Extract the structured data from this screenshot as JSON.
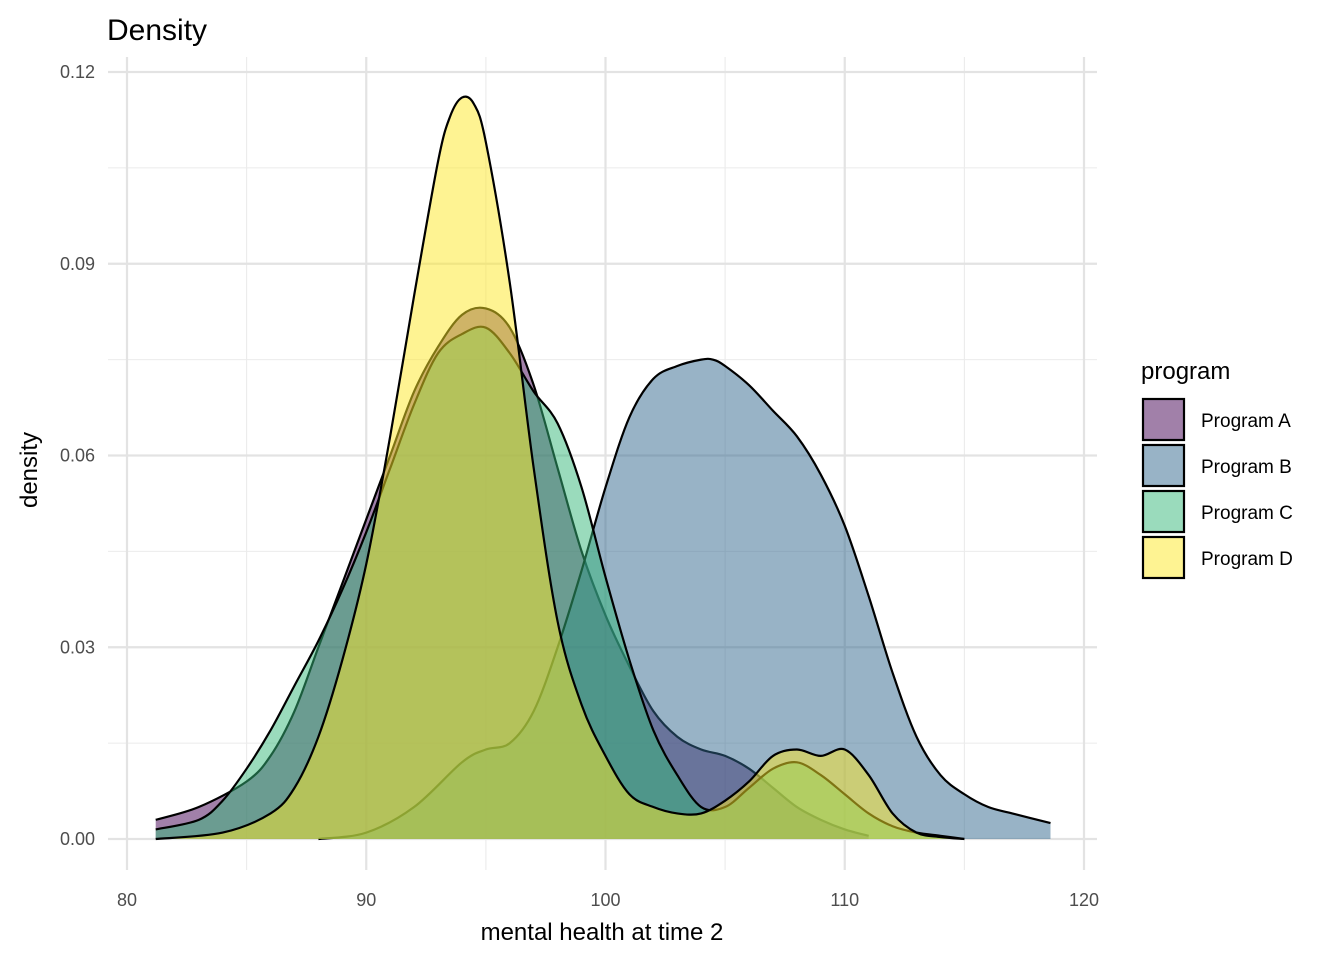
{
  "chart_data": {
    "type": "area",
    "title": "Density",
    "xlabel": "mental health at time 2",
    "ylabel": "density",
    "xlim": [
      80,
      120
    ],
    "ylim": [
      0,
      0.12
    ],
    "x_ticks": [
      "80",
      "90",
      "100",
      "110",
      "120"
    ],
    "y_ticks": [
      "0.00",
      "0.03",
      "0.06",
      "0.09",
      "0.12"
    ],
    "grid": true,
    "legend": {
      "title": "program",
      "position": "right"
    },
    "series": [
      {
        "name": "Program A",
        "color": "#440154",
        "x": [
          81.2,
          83,
          85,
          86,
          87,
          88,
          89,
          90,
          91,
          92,
          93,
          94,
          95,
          96,
          97,
          98,
          99,
          100,
          101,
          102,
          103,
          104,
          105,
          106,
          107,
          108,
          109,
          110,
          111
        ],
        "y": [
          0.003,
          0.005,
          0.009,
          0.013,
          0.02,
          0.03,
          0.04,
          0.05,
          0.06,
          0.07,
          0.077,
          0.082,
          0.083,
          0.08,
          0.071,
          0.058,
          0.045,
          0.035,
          0.027,
          0.02,
          0.016,
          0.014,
          0.013,
          0.011,
          0.008,
          0.005,
          0.003,
          0.0015,
          0.0005
        ]
      },
      {
        "name": "Program B",
        "color": "#31688E",
        "x": [
          88,
          90,
          92,
          94,
          95,
          96,
          97,
          98,
          99,
          100,
          101,
          102,
          103,
          104,
          104.5,
          105,
          106,
          107,
          108,
          109,
          110,
          111,
          112,
          113,
          114,
          115,
          116,
          117,
          118.6
        ],
        "y": [
          0.0,
          0.001,
          0.005,
          0.012,
          0.014,
          0.015,
          0.02,
          0.03,
          0.042,
          0.055,
          0.066,
          0.072,
          0.074,
          0.075,
          0.075,
          0.074,
          0.071,
          0.067,
          0.063,
          0.057,
          0.049,
          0.038,
          0.026,
          0.016,
          0.01,
          0.007,
          0.005,
          0.004,
          0.0025
        ]
      },
      {
        "name": "Program C",
        "color": "#35B779",
        "x": [
          81.2,
          83,
          84,
          85,
          86,
          87,
          88,
          89,
          90,
          91,
          92,
          93,
          94,
          95,
          96,
          97,
          98,
          99,
          100,
          101,
          102,
          103,
          104,
          105,
          106,
          107,
          108,
          109,
          110,
          111,
          112,
          113,
          114,
          115
        ],
        "y": [
          0.0015,
          0.003,
          0.006,
          0.011,
          0.017,
          0.024,
          0.031,
          0.039,
          0.048,
          0.058,
          0.068,
          0.076,
          0.079,
          0.08,
          0.076,
          0.07,
          0.065,
          0.055,
          0.041,
          0.028,
          0.017,
          0.01,
          0.005,
          0.005,
          0.008,
          0.011,
          0.012,
          0.01,
          0.007,
          0.004,
          0.002,
          0.001,
          0.0005,
          0.0
        ]
      },
      {
        "name": "Program D",
        "color": "#FDE725",
        "x": [
          81.2,
          84,
          86,
          87,
          88,
          89,
          90,
          91,
          92,
          93,
          93.5,
          94,
          94.5,
          95,
          96,
          97,
          98,
          99,
          100,
          101,
          102,
          103,
          104,
          105,
          106,
          107,
          108,
          109,
          110,
          111,
          112,
          113,
          114,
          115
        ],
        "y": [
          0.0,
          0.001,
          0.004,
          0.008,
          0.016,
          0.028,
          0.043,
          0.063,
          0.085,
          0.106,
          0.113,
          0.116,
          0.115,
          0.109,
          0.087,
          0.058,
          0.034,
          0.021,
          0.013,
          0.007,
          0.005,
          0.004,
          0.004,
          0.006,
          0.009,
          0.013,
          0.014,
          0.013,
          0.014,
          0.01,
          0.004,
          0.001,
          0.0003,
          0.0
        ]
      }
    ]
  }
}
